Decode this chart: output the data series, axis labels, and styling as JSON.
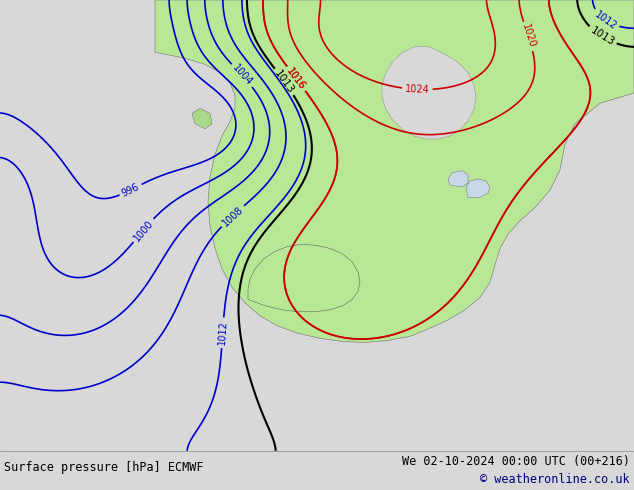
{
  "title_left": "Surface pressure [hPa] ECMWF",
  "title_right": "We 02-10-2024 00:00 UTC (00+216)",
  "copyright": "© weatheronline.co.uk",
  "bg_color": "#d8d8d8",
  "land_color": "#b8e8a0",
  "water_color": "#d8d8d8",
  "border_color": "#888888",
  "text_color_blue": "#0000cc",
  "text_color_red": "#cc0000",
  "text_color_black": "#000000",
  "text_color_dark_blue": "#000080",
  "bottom_bar_color": "#f0f0f0",
  "figsize": [
    6.34,
    4.9
  ],
  "dpi": 100
}
